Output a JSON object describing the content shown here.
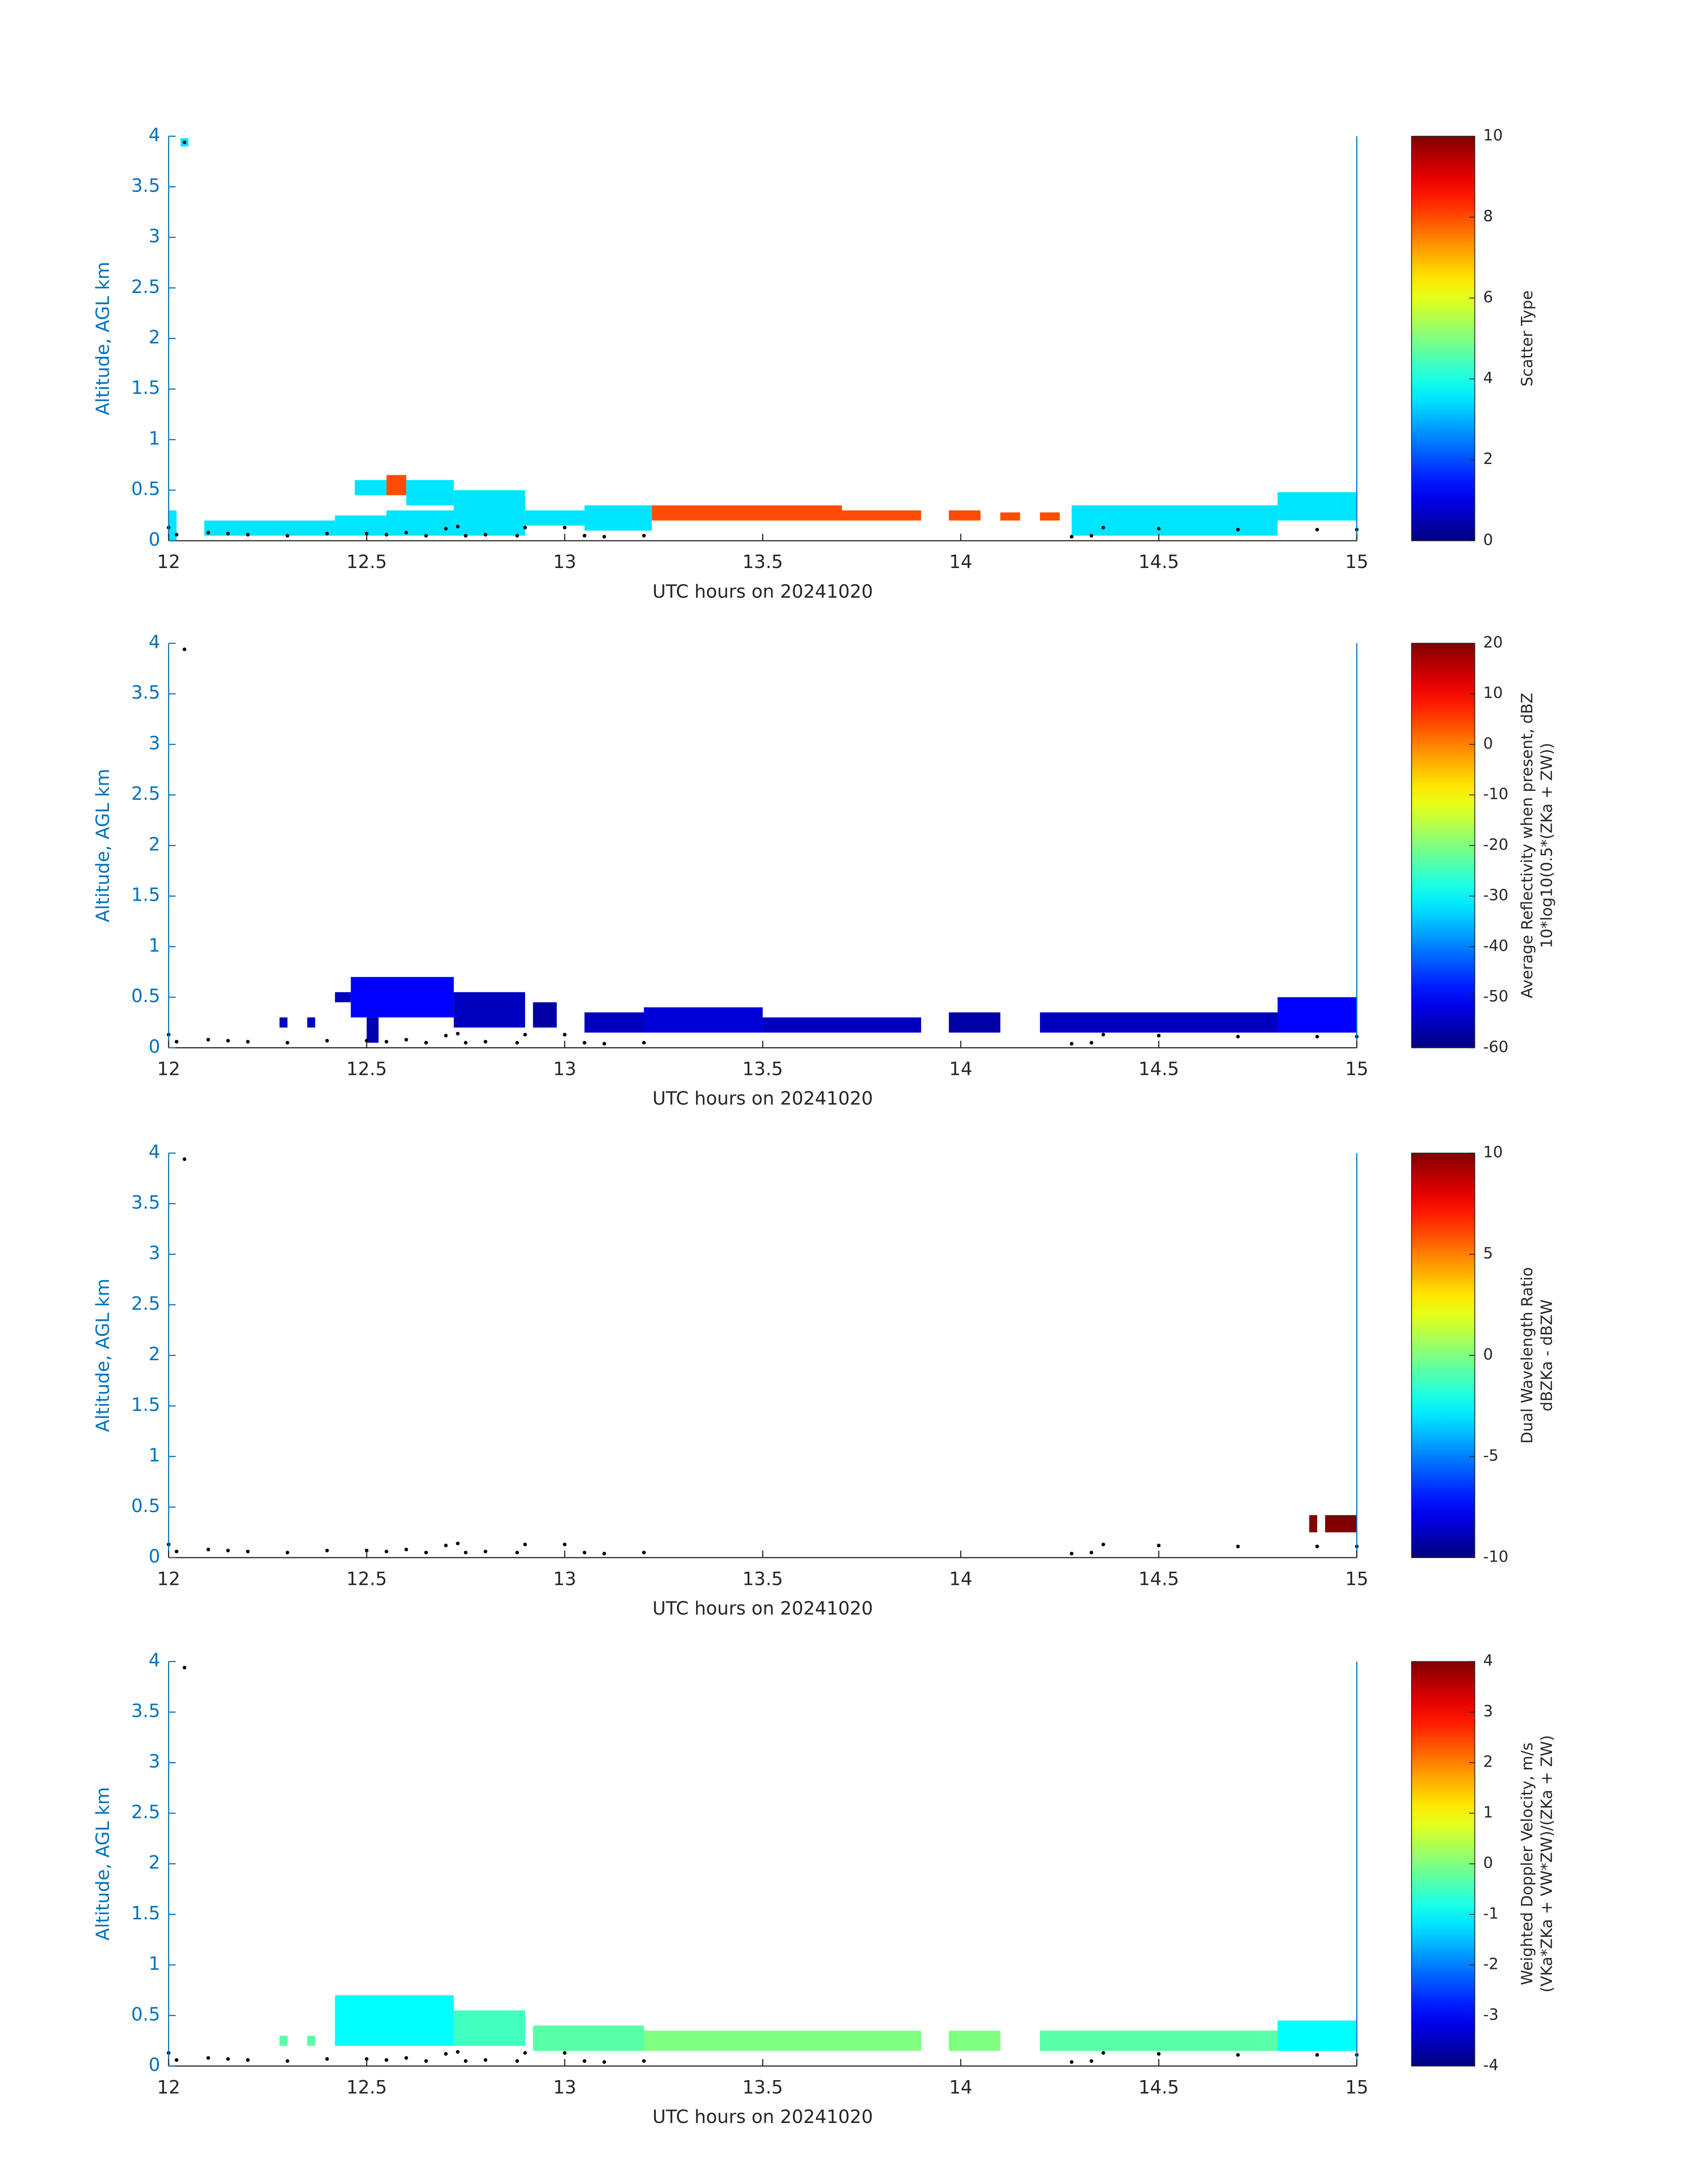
{
  "chart_data": [
    {
      "type": "heatmap",
      "xlabel": "UTC hours on 20241020",
      "ylabel": "Altitude, AGL km",
      "clabel": [
        "Scatter Type"
      ],
      "xlim": [
        12,
        15
      ],
      "xticks": [
        12,
        12.5,
        13,
        13.5,
        14,
        14.5,
        15
      ],
      "ylim": [
        0,
        4
      ],
      "yticks": [
        0,
        0.5,
        1,
        1.5,
        2,
        2.5,
        3,
        3.5,
        4
      ],
      "clim": [
        0,
        10
      ],
      "cticks": [
        0,
        2,
        4,
        6,
        8,
        10
      ],
      "cells": [
        {
          "x": [
            12.0,
            12.02
          ],
          "y": [
            0,
            0.3
          ],
          "value": 3.5
        },
        {
          "x": [
            12.09,
            12.42
          ],
          "y": [
            0.05,
            0.2
          ],
          "value": 3.5
        },
        {
          "x": [
            12.42,
            12.55
          ],
          "y": [
            0.05,
            0.25
          ],
          "value": 3.5
        },
        {
          "x": [
            12.47,
            12.55
          ],
          "y": [
            0.45,
            0.6
          ],
          "value": 3.5
        },
        {
          "x": [
            12.55,
            12.6
          ],
          "y": [
            0.45,
            0.65
          ],
          "value": 8
        },
        {
          "x": [
            12.6,
            12.72
          ],
          "y": [
            0.35,
            0.6
          ],
          "value": 3.5
        },
        {
          "x": [
            12.55,
            12.9
          ],
          "y": [
            0.05,
            0.3
          ],
          "value": 3.5
        },
        {
          "x": [
            12.72,
            12.9
          ],
          "y": [
            0.3,
            0.5
          ],
          "value": 3.5
        },
        {
          "x": [
            12.9,
            13.05
          ],
          "y": [
            0.15,
            0.3
          ],
          "value": 3.5
        },
        {
          "x": [
            13.05,
            13.22
          ],
          "y": [
            0.1,
            0.35
          ],
          "value": 3.5
        },
        {
          "x": [
            13.22,
            13.7
          ],
          "y": [
            0.2,
            0.35
          ],
          "value": 8
        },
        {
          "x": [
            13.7,
            13.9
          ],
          "y": [
            0.2,
            0.3
          ],
          "value": 8
        },
        {
          "x": [
            13.97,
            14.05
          ],
          "y": [
            0.2,
            0.3
          ],
          "value": 8
        },
        {
          "x": [
            14.1,
            14.15
          ],
          "y": [
            0.2,
            0.28
          ],
          "value": 8
        },
        {
          "x": [
            14.2,
            14.25
          ],
          "y": [
            0.2,
            0.28
          ],
          "value": 8
        },
        {
          "x": [
            14.28,
            14.8
          ],
          "y": [
            0.05,
            0.35
          ],
          "value": 3.5
        },
        {
          "x": [
            14.8,
            15
          ],
          "y": [
            0.2,
            0.48
          ],
          "value": 3.5
        },
        {
          "x": [
            12.03,
            12.05
          ],
          "y": [
            3.9,
            3.98
          ],
          "value": 3.5
        }
      ],
      "ground": {
        "x": [
          12.0,
          12.02,
          12.04,
          12.1,
          12.15,
          12.2,
          12.3,
          12.4,
          12.5,
          12.55,
          12.6,
          12.65,
          12.7,
          12.73,
          12.75,
          12.8,
          12.88,
          12.9,
          13.0,
          13.05,
          13.1,
          13.2,
          14.28,
          14.33,
          14.36,
          14.5,
          14.7,
          14.9,
          15.0
        ],
        "y": [
          0.13,
          0.06,
          3.94,
          0.08,
          0.07,
          0.06,
          0.05,
          0.07,
          0.07,
          0.06,
          0.08,
          0.05,
          0.12,
          0.14,
          0.05,
          0.06,
          0.05,
          0.13,
          0.13,
          0.05,
          0.04,
          0.05,
          0.04,
          0.05,
          0.13,
          0.12,
          0.11,
          0.11,
          0.11
        ]
      }
    },
    {
      "type": "heatmap",
      "xlabel": "UTC hours on 20241020",
      "ylabel": "Altitude, AGL km",
      "clabel": [
        "Average Reflectivity when present, dBZ",
        "10*log10(0.5*(ZKa + ZW))"
      ],
      "xlim": [
        12,
        15
      ],
      "xticks": [
        12,
        12.5,
        13,
        13.5,
        14,
        14.5,
        15
      ],
      "ylim": [
        0,
        4
      ],
      "yticks": [
        0,
        0.5,
        1,
        1.5,
        2,
        2.5,
        3,
        3.5,
        4
      ],
      "clim": [
        -60,
        20
      ],
      "cticks": [
        -60,
        -50,
        -40,
        -30,
        -20,
        -10,
        0,
        10,
        20
      ],
      "cells": [
        {
          "x": [
            12.28,
            12.3
          ],
          "y": [
            0.2,
            0.3
          ],
          "value": -55
        },
        {
          "x": [
            12.35,
            12.37
          ],
          "y": [
            0.2,
            0.3
          ],
          "value": -55
        },
        {
          "x": [
            12.42,
            12.46
          ],
          "y": [
            0.45,
            0.55
          ],
          "value": -55
        },
        {
          "x": [
            12.46,
            12.72
          ],
          "y": [
            0.3,
            0.7
          ],
          "value": -50
        },
        {
          "x": [
            12.5,
            12.53
          ],
          "y": [
            0.05,
            0.3
          ],
          "value": -56
        },
        {
          "x": [
            12.72,
            12.9
          ],
          "y": [
            0.2,
            0.55
          ],
          "value": -55
        },
        {
          "x": [
            12.92,
            12.98
          ],
          "y": [
            0.2,
            0.45
          ],
          "value": -57
        },
        {
          "x": [
            13.05,
            13.2
          ],
          "y": [
            0.15,
            0.35
          ],
          "value": -55
        },
        {
          "x": [
            13.2,
            13.5
          ],
          "y": [
            0.15,
            0.4
          ],
          "value": -53
        },
        {
          "x": [
            13.5,
            13.9
          ],
          "y": [
            0.15,
            0.3
          ],
          "value": -55
        },
        {
          "x": [
            13.97,
            14.1
          ],
          "y": [
            0.15,
            0.35
          ],
          "value": -57
        },
        {
          "x": [
            14.2,
            14.8
          ],
          "y": [
            0.15,
            0.35
          ],
          "value": -55
        },
        {
          "x": [
            14.8,
            15
          ],
          "y": [
            0.15,
            0.5
          ],
          "value": -50
        }
      ],
      "ground": {
        "x": [
          12.0,
          12.02,
          12.04,
          12.1,
          12.15,
          12.2,
          12.3,
          12.4,
          12.5,
          12.55,
          12.6,
          12.65,
          12.7,
          12.73,
          12.75,
          12.8,
          12.88,
          12.9,
          13.0,
          13.05,
          13.1,
          13.2,
          14.28,
          14.33,
          14.36,
          14.5,
          14.7,
          14.9,
          15.0
        ],
        "y": [
          0.13,
          0.06,
          3.94,
          0.08,
          0.07,
          0.06,
          0.05,
          0.07,
          0.07,
          0.06,
          0.08,
          0.05,
          0.12,
          0.14,
          0.05,
          0.06,
          0.05,
          0.13,
          0.13,
          0.05,
          0.04,
          0.05,
          0.04,
          0.05,
          0.13,
          0.12,
          0.11,
          0.11,
          0.11
        ]
      }
    },
    {
      "type": "heatmap",
      "xlabel": "UTC hours on 20241020",
      "ylabel": "Altitude, AGL km",
      "clabel": [
        "Dual Wavelength Ratio",
        "dBZKa - dBZW"
      ],
      "xlim": [
        12,
        15
      ],
      "xticks": [
        12,
        12.5,
        13,
        13.5,
        14,
        14.5,
        15
      ],
      "ylim": [
        0,
        4
      ],
      "yticks": [
        0,
        0.5,
        1,
        1.5,
        2,
        2.5,
        3,
        3.5,
        4
      ],
      "clim": [
        -10,
        10
      ],
      "cticks": [
        -10,
        -5,
        0,
        5,
        10
      ],
      "cells": [
        {
          "x": [
            14.88,
            14.9
          ],
          "y": [
            0.25,
            0.42
          ],
          "value": 10
        },
        {
          "x": [
            14.92,
            15
          ],
          "y": [
            0.25,
            0.42
          ],
          "value": 10
        }
      ],
      "ground": {
        "x": [
          12.0,
          12.02,
          12.04,
          12.1,
          12.15,
          12.2,
          12.3,
          12.4,
          12.5,
          12.55,
          12.6,
          12.65,
          12.7,
          12.73,
          12.75,
          12.8,
          12.88,
          12.9,
          13.0,
          13.05,
          13.1,
          13.2,
          14.28,
          14.33,
          14.36,
          14.5,
          14.7,
          14.9,
          15.0
        ],
        "y": [
          0.13,
          0.06,
          3.94,
          0.08,
          0.07,
          0.06,
          0.05,
          0.07,
          0.07,
          0.06,
          0.08,
          0.05,
          0.12,
          0.14,
          0.05,
          0.06,
          0.05,
          0.13,
          0.13,
          0.05,
          0.04,
          0.05,
          0.04,
          0.05,
          0.13,
          0.12,
          0.11,
          0.11,
          0.11
        ]
      }
    },
    {
      "type": "heatmap",
      "xlabel": "UTC hours on 20241020",
      "ylabel": "Altitude, AGL km",
      "clabel": [
        "Weighted Doppler Velocity, m/s",
        "(VKa*ZKa + VW*ZW)/(ZKa + ZW)"
      ],
      "xlim": [
        12,
        15
      ],
      "xticks": [
        12,
        12.5,
        13,
        13.5,
        14,
        14.5,
        15
      ],
      "ylim": [
        0,
        4
      ],
      "yticks": [
        0,
        0.5,
        1,
        1.5,
        2,
        2.5,
        3,
        3.5,
        4
      ],
      "clim": [
        -4,
        4
      ],
      "cticks": [
        -4,
        -3,
        -2,
        -1,
        0,
        1,
        2,
        3,
        4
      ],
      "cells": [
        {
          "x": [
            12.28,
            12.3
          ],
          "y": [
            0.2,
            0.3
          ],
          "value": -0.3
        },
        {
          "x": [
            12.35,
            12.37
          ],
          "y": [
            0.2,
            0.3
          ],
          "value": -0.3
        },
        {
          "x": [
            12.42,
            12.72
          ],
          "y": [
            0.2,
            0.7
          ],
          "value": -1
        },
        {
          "x": [
            12.72,
            12.9
          ],
          "y": [
            0.2,
            0.55
          ],
          "value": -0.5
        },
        {
          "x": [
            12.92,
            13.2
          ],
          "y": [
            0.15,
            0.4
          ],
          "value": -0.3
        },
        {
          "x": [
            13.2,
            13.9
          ],
          "y": [
            0.15,
            0.35
          ],
          "value": 0
        },
        {
          "x": [
            13.97,
            14.1
          ],
          "y": [
            0.15,
            0.35
          ],
          "value": 0
        },
        {
          "x": [
            14.2,
            14.8
          ],
          "y": [
            0.15,
            0.35
          ],
          "value": -0.3
        },
        {
          "x": [
            14.8,
            15
          ],
          "y": [
            0.15,
            0.45
          ],
          "value": -1
        }
      ],
      "ground": {
        "x": [
          12.0,
          12.02,
          12.04,
          12.1,
          12.15,
          12.2,
          12.3,
          12.4,
          12.5,
          12.55,
          12.6,
          12.65,
          12.7,
          12.73,
          12.75,
          12.8,
          12.88,
          12.9,
          13.0,
          13.05,
          13.1,
          13.2,
          14.28,
          14.33,
          14.36,
          14.5,
          14.7,
          14.9,
          15.0
        ],
        "y": [
          0.13,
          0.06,
          3.94,
          0.08,
          0.07,
          0.06,
          0.05,
          0.07,
          0.07,
          0.06,
          0.08,
          0.05,
          0.12,
          0.14,
          0.05,
          0.06,
          0.05,
          0.13,
          0.13,
          0.05,
          0.04,
          0.05,
          0.04,
          0.05,
          0.13,
          0.12,
          0.11,
          0.11,
          0.11
        ]
      }
    }
  ]
}
